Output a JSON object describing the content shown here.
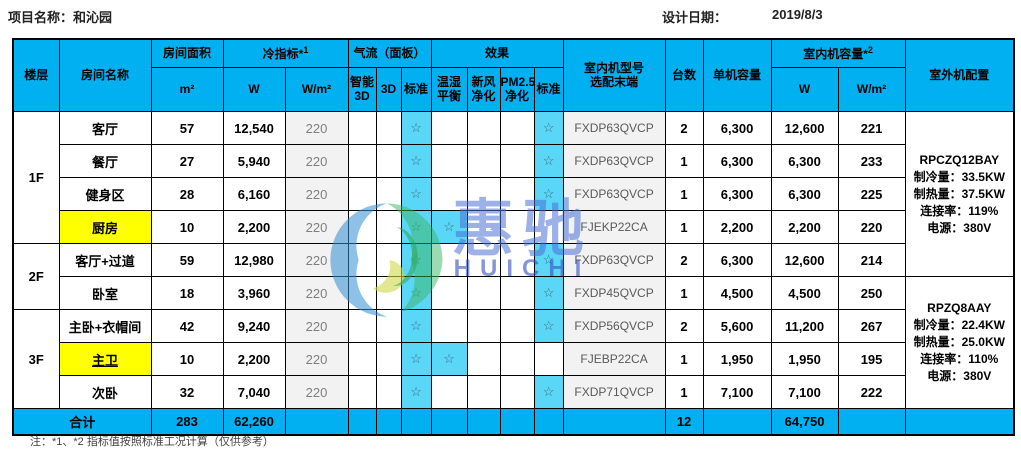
{
  "page": {
    "project_label": "项目名称：",
    "project_name": "和沁园",
    "date_label": "设计日期：",
    "date_value": "2019/8/3"
  },
  "colors": {
    "header_bg": "#00B0F0",
    "highlight_bg": "#5AD6F7",
    "yellow_bg": "#FFFF00",
    "muted_bg": "#F2F2F2",
    "muted_text": "#7F7F7F",
    "model_text": "#595959",
    "star_color": "#3E6F80"
  },
  "glyphs": {
    "star": "☆"
  },
  "header": {
    "floor": "楼层",
    "room": "房间名称",
    "area_group": "房间面积",
    "area_unit": "m²",
    "cold_group": "冷指标*",
    "cold_sup": "1",
    "w": "W",
    "wpm": "W/m²",
    "airflow_group": "气流（面板）",
    "smart3d": "智能\n3D",
    "d3": "3D",
    "air_std": "标准",
    "effect_group": "效果",
    "balance": "温湿\n平衡",
    "fresh": "新风\n净化",
    "pm25": "PM2.5\n净化",
    "eff_std": "标准",
    "model": "室内机型号\n选配末端",
    "units": "台数",
    "unit_cap": "单机容量",
    "cap_group": "室内机容量*",
    "cap_sup": "2",
    "cap_w": "W",
    "cap_wpm": "W/m²",
    "outdoor": "室外机配置"
  },
  "floors": [
    {
      "label": "1F",
      "row": 0,
      "span": 4
    },
    {
      "label": "2F",
      "row": 4,
      "span": 2
    },
    {
      "label": "3F",
      "row": 6,
      "span": 3
    }
  ],
  "rows": [
    {
      "room": "客厅",
      "yellow": false,
      "underline": false,
      "area": "57",
      "w": "12,540",
      "wpm": "220",
      "star_cols": [
        "air_std",
        "eff_std"
      ],
      "model": "FXDP63QVCP",
      "units": "2",
      "unit_cap": "6,300",
      "cap_w": "12,600",
      "cap_wpm": "221"
    },
    {
      "room": "餐厅",
      "yellow": false,
      "underline": false,
      "area": "27",
      "w": "5,940",
      "wpm": "220",
      "star_cols": [
        "air_std",
        "eff_std"
      ],
      "model": "FXDP63QVCP",
      "units": "1",
      "unit_cap": "6,300",
      "cap_w": "6,300",
      "cap_wpm": "233"
    },
    {
      "room": "健身区",
      "yellow": false,
      "underline": false,
      "area": "28",
      "w": "6,160",
      "wpm": "220",
      "star_cols": [
        "air_std",
        "eff_std"
      ],
      "model": "FXDP63QVCP",
      "units": "1",
      "unit_cap": "6,300",
      "cap_w": "6,300",
      "cap_wpm": "225"
    },
    {
      "room": "厨房",
      "yellow": true,
      "underline": false,
      "area": "10",
      "w": "2,200",
      "wpm": "220",
      "star_cols": [
        "air_std",
        "balance"
      ],
      "model": "FJEKP22CA",
      "units": "1",
      "unit_cap": "2,200",
      "cap_w": "2,200",
      "cap_wpm": "220"
    },
    {
      "room": "客厅+过道",
      "yellow": false,
      "underline": false,
      "area": "59",
      "w": "12,980",
      "wpm": "220",
      "star_cols": [
        "air_std",
        "eff_std"
      ],
      "model": "FXDP63QVCP",
      "units": "2",
      "unit_cap": "6,300",
      "cap_w": "12,600",
      "cap_wpm": "214"
    },
    {
      "room": "卧室",
      "yellow": false,
      "underline": false,
      "area": "18",
      "w": "3,960",
      "wpm": "220",
      "star_cols": [
        "air_std",
        "eff_std"
      ],
      "model": "FXDP45QVCP",
      "units": "1",
      "unit_cap": "4,500",
      "cap_w": "4,500",
      "cap_wpm": "250"
    },
    {
      "room": "主卧+衣帽间",
      "yellow": false,
      "underline": false,
      "area": "42",
      "w": "9,240",
      "wpm": "220",
      "star_cols": [
        "air_std",
        "eff_std"
      ],
      "model": "FXDP56QVCP",
      "units": "2",
      "unit_cap": "5,600",
      "cap_w": "11,200",
      "cap_wpm": "267"
    },
    {
      "room": "主卫",
      "yellow": true,
      "underline": true,
      "area": "10",
      "w": "2,200",
      "wpm": "220",
      "star_cols": [
        "air_std",
        "balance"
      ],
      "model": "FJEBP22CA",
      "units": "1",
      "unit_cap": "1,950",
      "cap_w": "1,950",
      "cap_wpm": "195"
    },
    {
      "room": "次卧",
      "yellow": false,
      "underline": false,
      "area": "32",
      "w": "7,040",
      "wpm": "220",
      "star_cols": [
        "air_std",
        "eff_std"
      ],
      "model": "FXDP71QVCP",
      "units": "1",
      "unit_cap": "7,100",
      "cap_w": "7,100",
      "cap_wpm": "222"
    }
  ],
  "outdoor_groups": [
    {
      "row": 0,
      "span": 5,
      "model": "RPCZQ12BAY",
      "lines": [
        "制冷量：33.5KW",
        "制热量：37.5KW",
        "连接率：119%",
        "电源：380V"
      ]
    },
    {
      "row": 5,
      "span": 4,
      "model": "RPZQ8AAY",
      "lines": [
        "制冷量：22.4KW",
        "制热量：25.0KW",
        "连接率：110%",
        "电源：380V"
      ]
    }
  ],
  "total": {
    "label": "合计",
    "area": "283",
    "w": "62,260",
    "units": "12",
    "cap_w": "64,750"
  },
  "watermark": {
    "cn": "惠驰",
    "latin": "HUICHI"
  },
  "footnote": "注：*1、*2 指标值按照标准工况计算（仅供参考）"
}
